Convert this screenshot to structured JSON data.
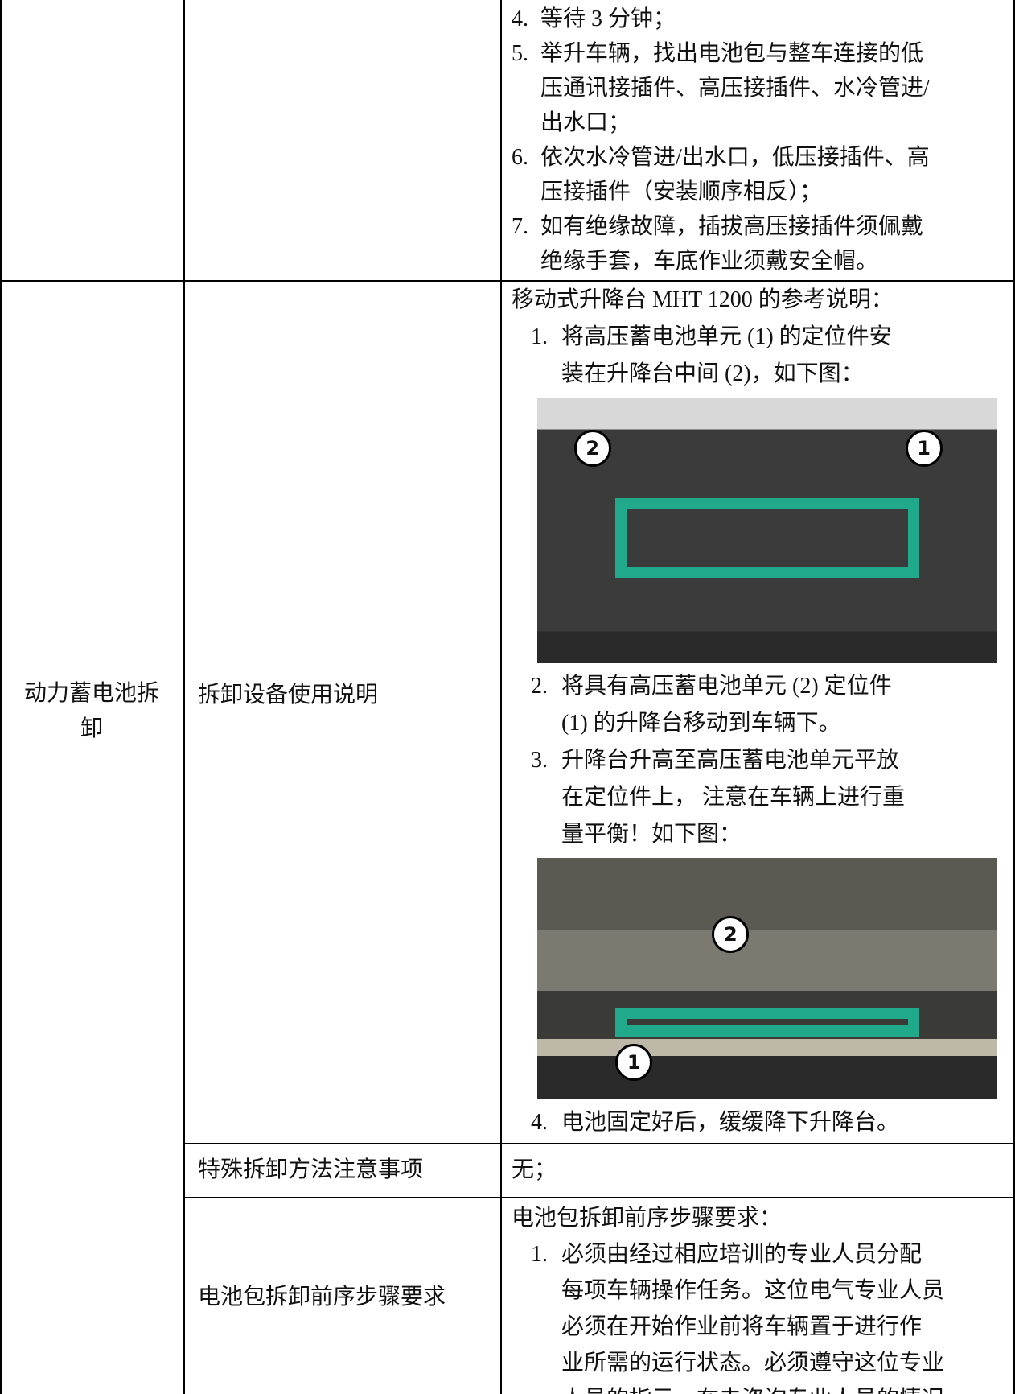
{
  "table": {
    "rows": [
      {
        "steps": [
          {
            "number": "4.",
            "lines": [
              "等待 3 分钟；"
            ]
          },
          {
            "number": "5.",
            "lines": [
              "举升车辆，找出电池包与整车连接的低",
              "压通讯接插件、高压接插件、水冷管进/",
              "出水口；"
            ]
          },
          {
            "number": "6.",
            "lines": [
              "依次水冷管进/出水口，低压接插件、高",
              "压接插件（安装顺序相反）；"
            ]
          },
          {
            "number": "7.",
            "lines": [
              "如有绝缘故障，插拔高压接插件须佩戴",
              "绝缘手套，车底作业须戴安全帽。"
            ]
          }
        ]
      },
      {
        "group": [
          "动力蓄电池拆",
          "卸"
        ],
        "item": "拆卸设备使用说明",
        "intro": "移动式升降台 MHT 1200 的参考说明：",
        "steps": [
          {
            "number": "1.",
            "lines": [
              "将高压蓄电池单元 (1) 的定位件安",
              "装在升降台中间 (2)，如下图："
            ],
            "figure": {
              "callouts": [
                "2",
                "1"
              ]
            }
          },
          {
            "number": "2.",
            "lines": [
              "将具有高压蓄电池单元 (2) 定位件",
              "(1) 的升降台移动到车辆下。"
            ]
          },
          {
            "number": "3.",
            "lines": [
              "升降台升高至高压蓄电池单元平放",
              "在定位件上， 注意在车辆上进行重",
              "量平衡！如下图："
            ],
            "figure": {
              "callouts": [
                "2",
                "1"
              ]
            }
          },
          {
            "number": "4.",
            "lines": [
              "电池固定好后，缓缓降下升降台。"
            ]
          }
        ]
      },
      {
        "item": "特殊拆卸方法注意事项",
        "text": "无；"
      },
      {
        "item": "电池包拆卸前序步骤要求",
        "intro": "电池包拆卸前序步骤要求：",
        "steps": [
          {
            "number": "1.",
            "lines": [
              "必须由经过相应培训的专业人员分配",
              "每项车辆操作任务。这位电气专业人员",
              "必须在开始作业前将车辆置于进行作",
              "业所需的运行状态。必须遵守这位专业",
              "人员的指示。在未咨询专业人员的情况"
            ]
          }
        ]
      }
    ]
  }
}
